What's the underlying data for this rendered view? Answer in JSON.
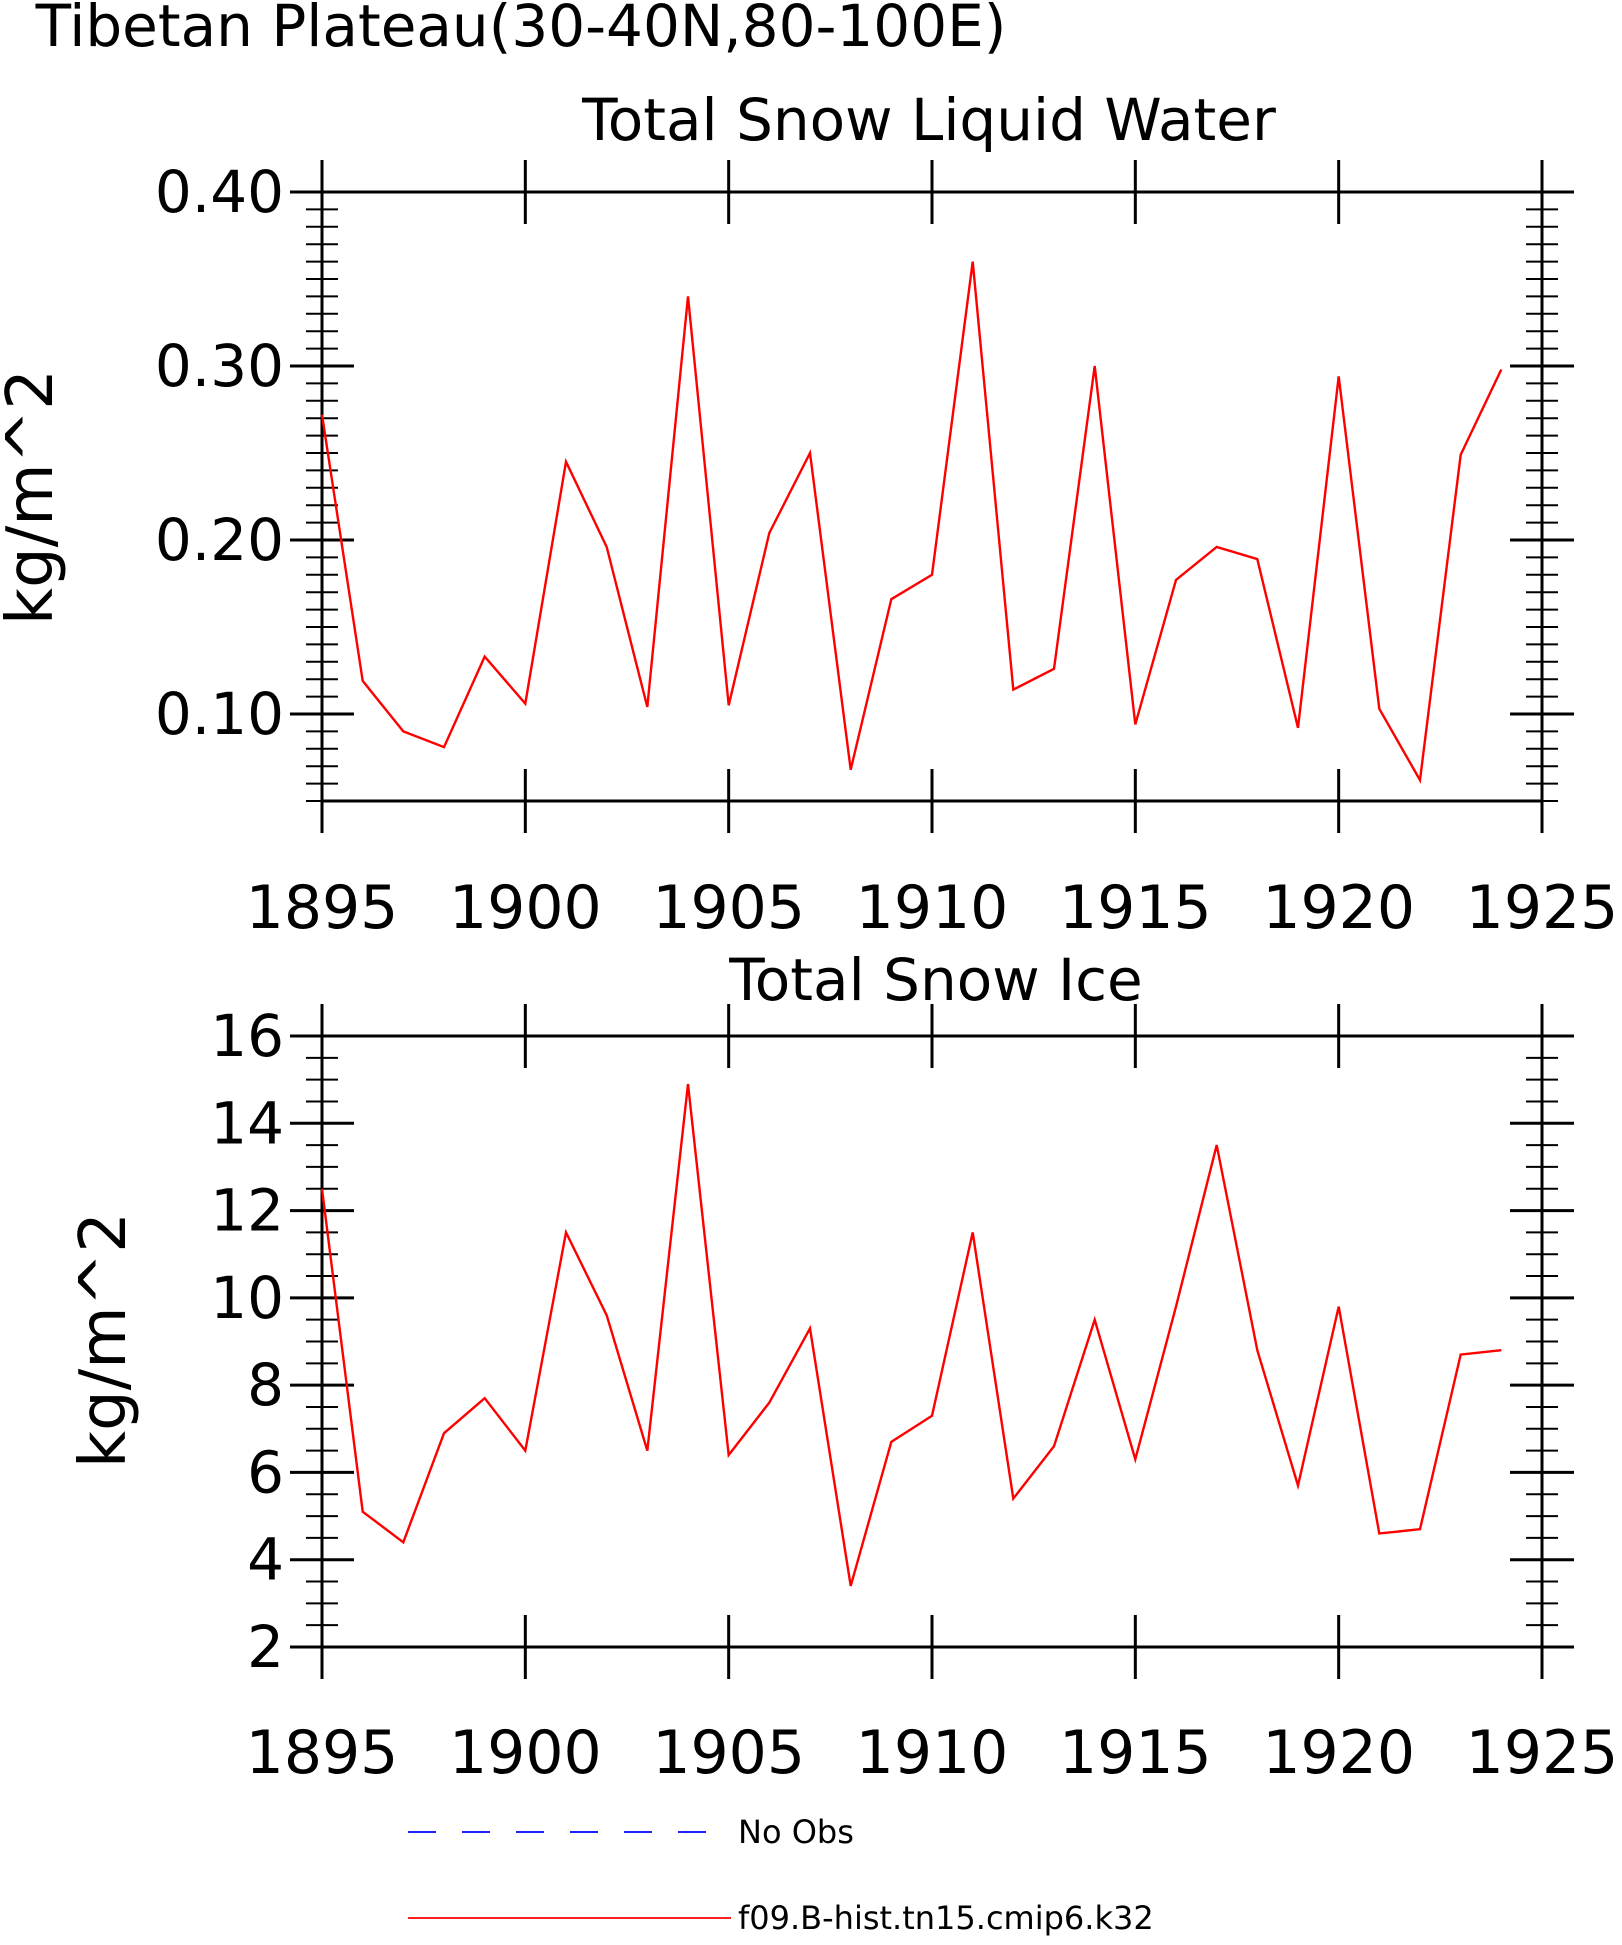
{
  "figure": {
    "title_line1": "Tibetan Plateau(30-40N,80-100E)"
  },
  "chart_data": [
    {
      "type": "line",
      "title": "Total Snow Liquid Water",
      "xlabel": "",
      "ylabel": "kg/m^2",
      "xlim": [
        1895,
        1925
      ],
      "ylim": [
        0.05,
        0.4
      ],
      "xticks": [
        1895,
        1900,
        1905,
        1910,
        1915,
        1920,
        1925
      ],
      "yticks": [
        0.1,
        0.2,
        0.3,
        0.4
      ],
      "ytick_labels": [
        "0.10",
        "0.20",
        "0.30",
        "0.40"
      ],
      "ymin_ticks": [
        0.05,
        0.06,
        0.07,
        0.08,
        0.09,
        0.11,
        0.12,
        0.13,
        0.14,
        0.15,
        0.16,
        0.17,
        0.18,
        0.19,
        0.21,
        0.22,
        0.23,
        0.24,
        0.25,
        0.26,
        0.27,
        0.28,
        0.29,
        0.31,
        0.32,
        0.33,
        0.34,
        0.35,
        0.36,
        0.37,
        0.38,
        0.39
      ],
      "x": [
        1895,
        1896,
        1897,
        1898,
        1899,
        1900,
        1901,
        1902,
        1903,
        1904,
        1905,
        1906,
        1907,
        1908,
        1909,
        1910,
        1911,
        1912,
        1913,
        1914,
        1915,
        1916,
        1917,
        1918,
        1919,
        1920,
        1921,
        1922,
        1923,
        1924
      ],
      "series": [
        {
          "name": "f09.B-hist.tn15.cmip6.k32",
          "color": "#ff0000",
          "values": [
            0.272,
            0.119,
            0.09,
            0.081,
            0.133,
            0.106,
            0.245,
            0.196,
            0.104,
            0.34,
            0.105,
            0.204,
            0.25,
            0.068,
            0.166,
            0.18,
            0.36,
            0.114,
            0.126,
            0.3,
            0.094,
            0.177,
            0.196,
            0.189,
            0.092,
            0.294,
            0.103,
            0.062,
            0.249,
            0.298
          ]
        }
      ]
    },
    {
      "type": "line",
      "title": "Total Snow Ice",
      "xlabel": "",
      "ylabel": "kg/m^2",
      "xlim": [
        1895,
        1925
      ],
      "ylim": [
        2,
        16
      ],
      "xticks": [
        1895,
        1900,
        1905,
        1910,
        1915,
        1920,
        1925
      ],
      "yticks": [
        2,
        4,
        6,
        8,
        10,
        12,
        14,
        16
      ],
      "ytick_labels": [
        "2",
        "4",
        "6",
        "8",
        "10",
        "12",
        "14",
        "16"
      ],
      "ymin_ticks": [
        2.5,
        3,
        3.5,
        4.5,
        5,
        5.5,
        6.5,
        7,
        7.5,
        8.5,
        9,
        9.5,
        10.5,
        11,
        11.5,
        12.5,
        13,
        13.5,
        14.5,
        15,
        15.5
      ],
      "x": [
        1895,
        1896,
        1897,
        1898,
        1899,
        1900,
        1901,
        1902,
        1903,
        1904,
        1905,
        1906,
        1907,
        1908,
        1909,
        1910,
        1911,
        1912,
        1913,
        1914,
        1915,
        1916,
        1917,
        1918,
        1919,
        1920,
        1921,
        1922,
        1923,
        1924
      ],
      "series": [
        {
          "name": "f09.B-hist.tn15.cmip6.k32",
          "color": "#ff0000",
          "values": [
            12.5,
            5.1,
            4.4,
            6.9,
            7.7,
            6.5,
            11.5,
            9.6,
            6.5,
            14.9,
            6.4,
            7.6,
            9.3,
            3.4,
            6.7,
            7.3,
            11.5,
            5.4,
            6.6,
            9.5,
            6.3,
            9.8,
            13.5,
            8.8,
            5.7,
            9.8,
            4.6,
            4.7,
            8.7,
            8.8
          ]
        }
      ]
    }
  ],
  "legend": {
    "items": [
      {
        "label": "No Obs",
        "color": "#0000ff",
        "style": "dashed"
      },
      {
        "label": "f09.B-hist.tn15.cmip6.k32",
        "color": "#ff0000",
        "style": "solid"
      }
    ]
  }
}
